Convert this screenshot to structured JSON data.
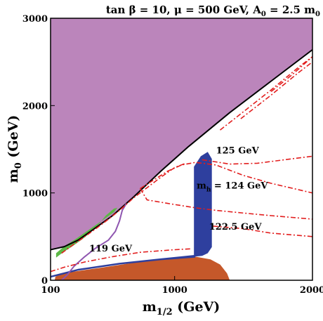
{
  "chart_data": {
    "type": "contour",
    "title": {
      "main": "tan β = 10,   μ = 500 GeV, A",
      "sub1": "0",
      "mid": " = 2.5 m",
      "sub2": "0"
    },
    "xlabel": {
      "main": "m",
      "sub": "1/2",
      "tail": " (GeV)"
    },
    "ylabel": {
      "main": "m",
      "sub": "0",
      "tail": " (GeV)"
    },
    "xlim": [
      100,
      2000
    ],
    "ylim": [
      0,
      3000
    ],
    "x_ticks": [
      {
        "value": 100,
        "label": "100"
      },
      {
        "value": 1000,
        "label": "1000"
      },
      {
        "value": 2000,
        "label": "2000"
      }
    ],
    "y_ticks": [
      {
        "value": 0,
        "label": "0"
      },
      {
        "value": 1000,
        "label": "1000"
      },
      {
        "value": 2000,
        "label": "2000"
      },
      {
        "value": 3000,
        "label": "3000"
      }
    ],
    "colors": {
      "stau_lsp": "#bb85bb",
      "ewsb_excluded": "#c5582a",
      "coannihilation": "#5cb846",
      "relic_density": "#2e3f9e",
      "higgs_contour": "#e21e1e",
      "chargino_line": "#8f56b0",
      "boundary": "#000000"
    },
    "regions": [
      {
        "name": "stau LSP region",
        "color_key": "stau_lsp",
        "points": [
          [
            100,
            3000
          ],
          [
            2000,
            3000
          ],
          [
            2000,
            2640
          ],
          [
            1700,
            2280
          ],
          [
            1400,
            1920
          ],
          [
            1100,
            1530
          ],
          [
            900,
            1250
          ],
          [
            700,
            950
          ],
          [
            550,
            740
          ],
          [
            400,
            570
          ],
          [
            300,
            460
          ],
          [
            200,
            385
          ],
          [
            130,
            360
          ],
          [
            100,
            350
          ]
        ]
      },
      {
        "name": "EWSB-excluded region",
        "color_key": "ewsb_excluded",
        "points": [
          [
            130,
            0
          ],
          [
            1400,
            0
          ],
          [
            1380,
            80
          ],
          [
            1330,
            180
          ],
          [
            1260,
            240
          ],
          [
            1150,
            270
          ],
          [
            950,
            250
          ],
          [
            700,
            200
          ],
          [
            450,
            140
          ],
          [
            250,
            95
          ],
          [
            170,
            70
          ],
          [
            135,
            40
          ],
          [
            130,
            0
          ]
        ]
      },
      {
        "name": "coannihilation strip",
        "color_key": "coannihilation",
        "points": [
          [
            140,
            310
          ],
          [
            200,
            390
          ],
          [
            280,
            470
          ],
          [
            380,
            580
          ],
          [
            480,
            690
          ],
          [
            560,
            780
          ],
          [
            585,
            830
          ],
          [
            560,
            820
          ],
          [
            500,
            740
          ],
          [
            430,
            600
          ],
          [
            330,
            470
          ],
          [
            250,
            380
          ],
          [
            190,
            320
          ],
          [
            140,
            260
          ]
        ]
      },
      {
        "name": "relic density funnel",
        "color_key": "relic_density",
        "points": [
          [
            1140,
            270
          ],
          [
            1140,
            1300
          ],
          [
            1190,
            1420
          ],
          [
            1240,
            1470
          ],
          [
            1270,
            1390
          ],
          [
            1270,
            380
          ],
          [
            1240,
            310
          ],
          [
            1200,
            280
          ]
        ]
      },
      {
        "name": "relic density band",
        "color_key": "relic_density",
        "points": [
          [
            100,
            50
          ],
          [
            300,
            130
          ],
          [
            600,
            200
          ],
          [
            900,
            250
          ],
          [
            1150,
            290
          ],
          [
            1150,
            260
          ],
          [
            900,
            230
          ],
          [
            600,
            180
          ],
          [
            300,
            110
          ],
          [
            100,
            30
          ]
        ]
      }
    ],
    "lines": [
      {
        "name": "stau LSP boundary",
        "color_key": "boundary",
        "style": "solid",
        "points": [
          [
            100,
            350
          ],
          [
            130,
            360
          ],
          [
            200,
            385
          ],
          [
            300,
            460
          ],
          [
            400,
            570
          ],
          [
            550,
            740
          ],
          [
            700,
            950
          ],
          [
            900,
            1250
          ],
          [
            1100,
            1530
          ],
          [
            1400,
            1920
          ],
          [
            1700,
            2280
          ],
          [
            2000,
            2640
          ]
        ]
      },
      {
        "name": "chargino limit",
        "color_key": "chargino_line",
        "style": "solid",
        "points": [
          [
            180,
            0
          ],
          [
            220,
            60
          ],
          [
            270,
            160
          ],
          [
            340,
            260
          ],
          [
            420,
            360
          ],
          [
            520,
            460
          ],
          [
            570,
            560
          ],
          [
            600,
            680
          ],
          [
            620,
            800
          ],
          [
            650,
            880
          ]
        ]
      },
      {
        "name": "119 GeV",
        "color_key": "higgs_contour",
        "style": "dashdot",
        "points": [
          [
            100,
            100
          ],
          [
            200,
            150
          ],
          [
            350,
            210
          ],
          [
            550,
            270
          ],
          [
            750,
            320
          ],
          [
            1000,
            350
          ],
          [
            1120,
            360
          ]
        ]
      },
      {
        "name": "122.5 GeV",
        "color_key": "higgs_contour",
        "style": "dashdot",
        "points": [
          [
            180,
            310
          ],
          [
            250,
            390
          ],
          [
            330,
            480
          ],
          [
            420,
            580
          ],
          [
            520,
            700
          ],
          [
            600,
            800
          ],
          [
            700,
            940
          ],
          [
            800,
            1060
          ],
          [
            900,
            1180
          ],
          [
            1000,
            1290
          ],
          [
            1080,
            1340
          ]
        ]
      },
      {
        "name": "122.5 GeV (upper branch)",
        "color_key": "higgs_contour",
        "style": "dashdot",
        "points": [
          [
            1280,
            620
          ],
          [
            1500,
            590
          ],
          [
            1700,
            540
          ],
          [
            2000,
            500
          ]
        ]
      },
      {
        "name": "124 GeV",
        "color_key": "higgs_contour",
        "style": "dashdot",
        "points": [
          [
            750,
            1050
          ],
          [
            850,
            1150
          ],
          [
            950,
            1250
          ],
          [
            1050,
            1320
          ],
          [
            1150,
            1350
          ],
          [
            1300,
            1320
          ],
          [
            1500,
            1200
          ],
          [
            1700,
            1110
          ],
          [
            2000,
            1000
          ]
        ]
      },
      {
        "name": "124 GeV (lower branch)",
        "color_key": "higgs_contour",
        "style": "dashdot",
        "points": [
          [
            750,
            1050
          ],
          [
            800,
            920
          ],
          [
            950,
            880
          ],
          [
            1150,
            830
          ],
          [
            1300,
            800
          ],
          [
            1500,
            770
          ],
          [
            1700,
            740
          ],
          [
            2000,
            700
          ]
        ]
      },
      {
        "name": "125 GeV",
        "color_key": "higgs_contour",
        "style": "dashdot",
        "points": [
          [
            1200,
            1380
          ],
          [
            1400,
            1330
          ],
          [
            1600,
            1340
          ],
          [
            1800,
            1380
          ],
          [
            2000,
            1420
          ]
        ]
      },
      {
        "name": "125 GeV (upper branch)",
        "color_key": "higgs_contour",
        "style": "dashdot",
        "points": [
          [
            1330,
            1720
          ],
          [
            1500,
            1930
          ],
          [
            1700,
            2180
          ],
          [
            1900,
            2440
          ],
          [
            2000,
            2560
          ]
        ]
      },
      {
        "name": "upper contour",
        "color_key": "higgs_contour",
        "style": "dashdot",
        "points": [
          [
            1480,
            1850
          ],
          [
            1700,
            2120
          ],
          [
            1900,
            2380
          ],
          [
            2000,
            2500
          ]
        ]
      },
      {
        "name": "topmost contour",
        "color_key": "higgs_contour",
        "style": "dashdot",
        "points": [
          [
            1700,
            2160
          ],
          [
            1850,
            2350
          ],
          [
            2000,
            2560
          ]
        ]
      }
    ],
    "annotations": [
      {
        "text": "125 GeV",
        "x": 1300,
        "y": 1450
      },
      {
        "text": "m",
        "sub": "h",
        "tail": " = 124 GeV",
        "x": 1160,
        "y": 1050
      },
      {
        "text": "122.5 GeV",
        "x": 1250,
        "y": 580
      },
      {
        "text": "119 GeV",
        "x": 380,
        "y": 330
      }
    ]
  }
}
